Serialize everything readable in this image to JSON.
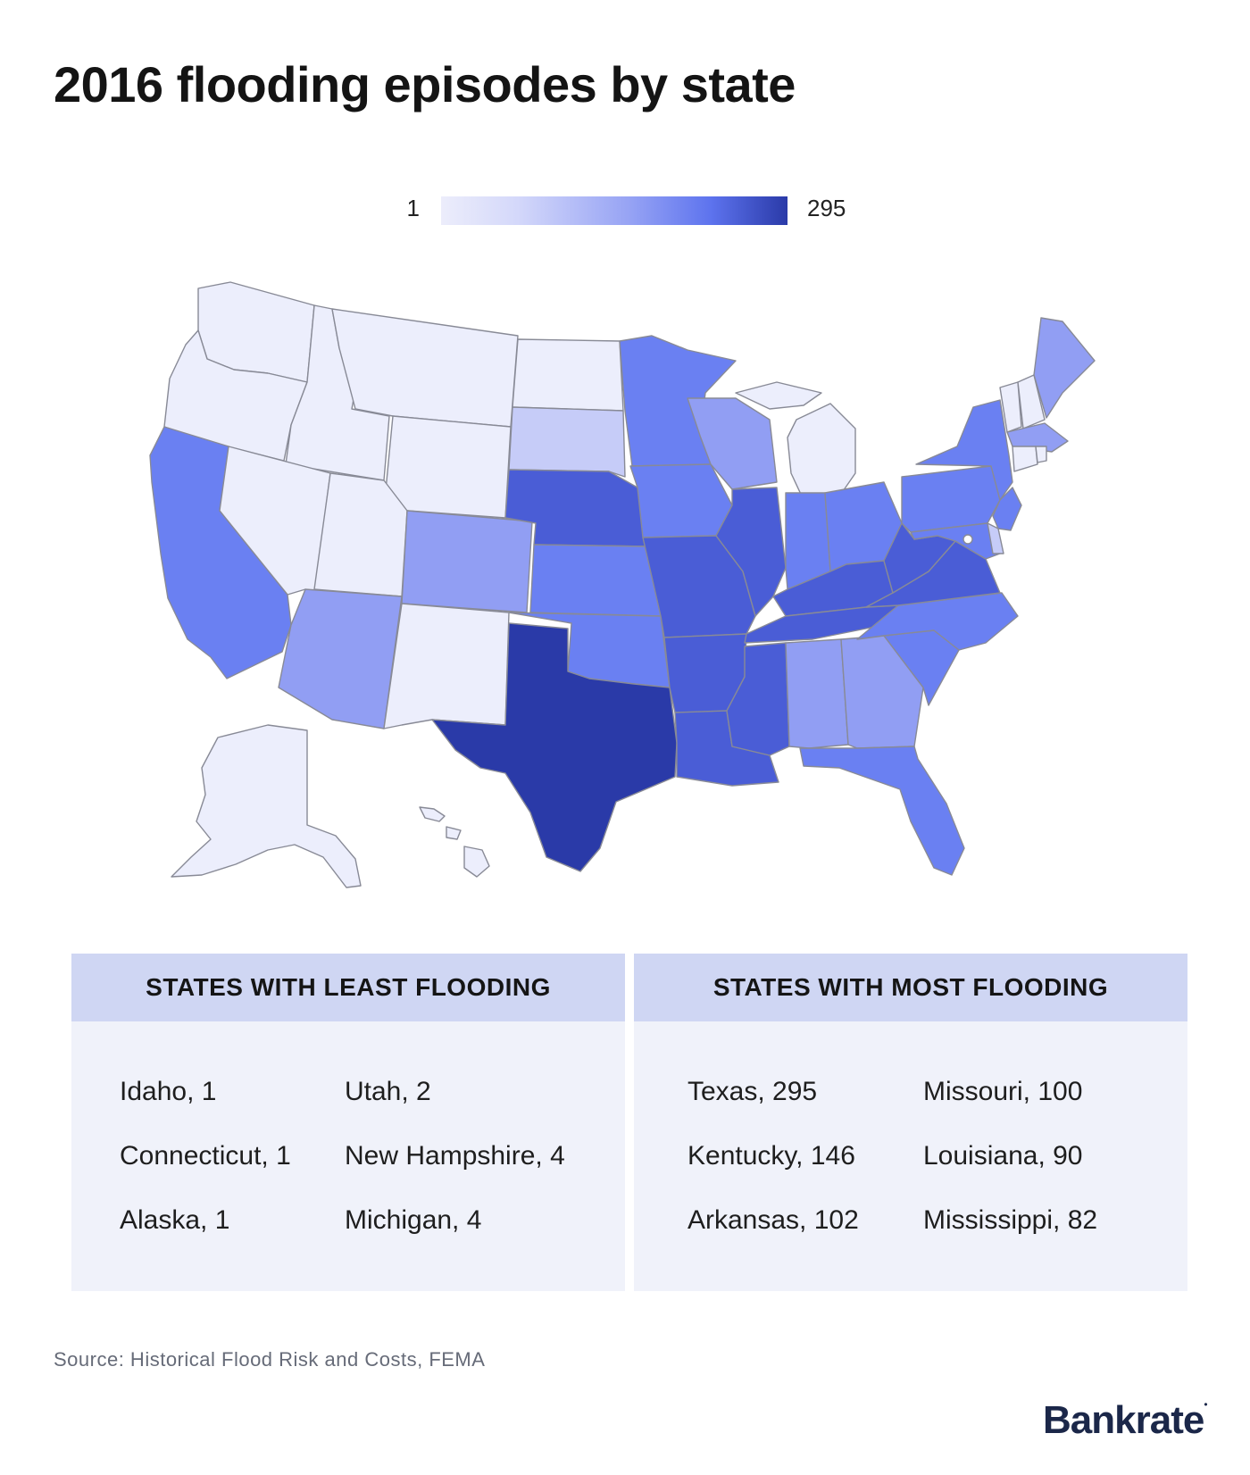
{
  "title": "2016 flooding episodes by state",
  "legend": {
    "min_label": "1",
    "max_label": "295"
  },
  "colors": {
    "least": "#eceefc",
    "low": "#c6ccf8",
    "mid": "#919ef3",
    "high": "#6a80f2",
    "higher": "#4a5dd6",
    "highest": "#2a3aa8",
    "border": "#888a96",
    "panel_head": "#cfd6f3",
    "panel_body": "#f0f2fa",
    "logo": "#1b2749"
  },
  "least_flooding": {
    "heading": "STATES WITH LEAST FLOODING",
    "items": [
      "Idaho, 1",
      "Utah, 2",
      "Connecticut, 1",
      "New Hampshire, 4",
      "Alaska, 1",
      "Michigan, 4"
    ]
  },
  "most_flooding": {
    "heading": "STATES WITH MOST FLOODING",
    "items": [
      "Texas, 295",
      "Missouri, 100",
      "Kentucky, 146",
      "Louisiana, 90",
      "Arkansas, 102",
      "Mississippi, 82"
    ]
  },
  "source": "Source: Historical Flood Risk and Costs, FEMA",
  "logo": "Bankrate"
}
